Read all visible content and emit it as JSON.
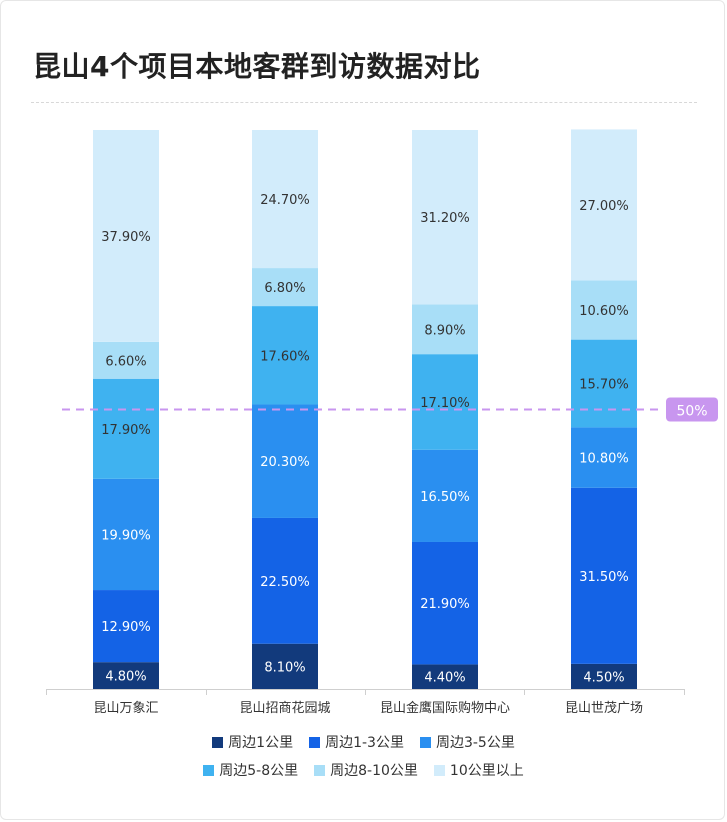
{
  "title": "昆山4个项目本地客群到访数据对比",
  "colors": {
    "周边1公里": "#123a7c",
    "周边1-3公里": "#1463e6",
    "周边3-5公里": "#2a8ff0",
    "周边5-8公里": "#3fb2f0",
    "周边8-10公里": "#a8def7",
    "10公里以上": "#d2ecfb",
    "reference_line": "#c896ef"
  },
  "chart_data": {
    "type": "bar",
    "stacked": true,
    "categories": [
      "昆山万象汇",
      "昆山招商花园城",
      "昆山金鹰国际购物中心",
      "昆山世茂广场"
    ],
    "series": [
      {
        "name": "周边1公里",
        "values": [
          4.8,
          8.1,
          4.4,
          4.5
        ],
        "labels": [
          "4.80%",
          "8.10%",
          "4.40%",
          "4.50%"
        ]
      },
      {
        "name": "周边1-3公里",
        "values": [
          12.9,
          22.5,
          21.9,
          31.5
        ],
        "labels": [
          "12.90%",
          "22.50%",
          "21.90%",
          "31.50%"
        ]
      },
      {
        "name": "周边3-5公里",
        "values": [
          19.9,
          20.3,
          16.5,
          10.8
        ],
        "labels": [
          "19.90%",
          "20.30%",
          "16.50%",
          "10.80%"
        ]
      },
      {
        "name": "周边5-8公里",
        "values": [
          17.9,
          17.6,
          17.1,
          15.7
        ],
        "labels": [
          "17.90%",
          "17.60%",
          "17.10%",
          "15.70%"
        ]
      },
      {
        "name": "周边8-10公里",
        "values": [
          6.6,
          6.8,
          8.9,
          10.6
        ],
        "labels": [
          "6.60%",
          "6.80%",
          "8.90%",
          "10.60%"
        ]
      },
      {
        "name": "10公里以上",
        "values": [
          37.9,
          24.7,
          31.2,
          27.0
        ],
        "labels": [
          "37.90%",
          "24.70%",
          "31.20%",
          "27.00%"
        ]
      }
    ],
    "ylim": [
      0,
      100
    ],
    "reference_line": {
      "value": 50,
      "label": "50%"
    },
    "legend_position": "bottom"
  }
}
